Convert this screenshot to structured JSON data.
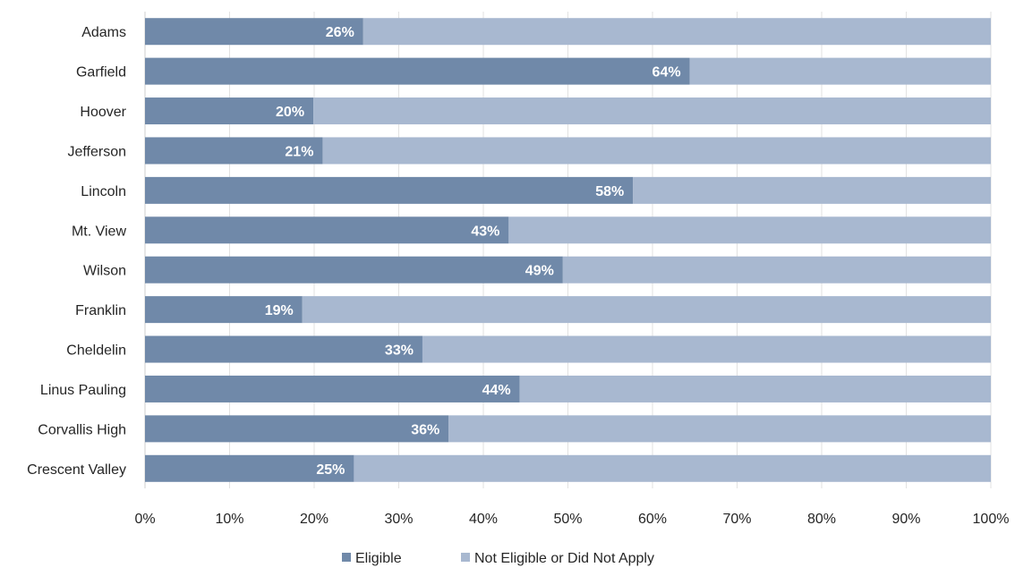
{
  "chart_data": {
    "type": "bar",
    "orientation": "horizontal",
    "stacked": "percent",
    "categories": [
      "Adams",
      "Garfield",
      "Hoover",
      "Jefferson",
      "Lincoln",
      "Mt. View",
      "Wilson",
      "Franklin",
      "Cheldelin",
      "Linus Pauling",
      "Corvallis High",
      "Crescent Valley"
    ],
    "series": [
      {
        "name": "Eligible",
        "color": "#7089a9",
        "values": [
          25.8,
          64.4,
          19.9,
          21.0,
          57.7,
          43.0,
          49.4,
          18.6,
          32.8,
          44.3,
          35.9,
          24.7
        ]
      },
      {
        "name": "Not Eligible or Did Not Apply",
        "color": "#a8b8d0",
        "values": [
          74.2,
          35.6,
          80.1,
          79.0,
          42.3,
          57.0,
          50.6,
          81.4,
          67.2,
          55.7,
          64.1,
          75.3
        ]
      }
    ],
    "data_labels": [
      "26%",
      "64%",
      "20%",
      "21%",
      "58%",
      "43%",
      "49%",
      "19%",
      "33%",
      "44%",
      "36%",
      "25%"
    ],
    "x_ticks": [
      "0%",
      "10%",
      "20%",
      "30%",
      "40%",
      "50%",
      "60%",
      "70%",
      "80%",
      "90%",
      "100%"
    ],
    "xlim": [
      0,
      100
    ],
    "grid": "vertical",
    "legend": "bottom",
    "title": "",
    "xlabel": "",
    "ylabel": ""
  }
}
